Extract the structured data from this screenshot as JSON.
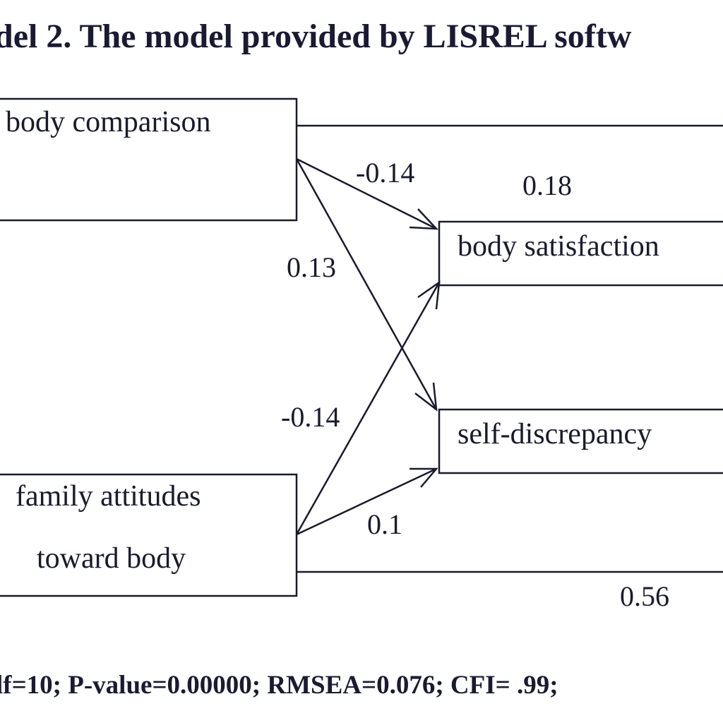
{
  "title": "del 2. The model provided by LISREL softw",
  "fit_line": "lf=10; P-value=0.00000; RMSEA=0.076; CFI= .99;",
  "nodes": {
    "body_comparison": "body comparison",
    "family_attitudes_line1": "family attitudes",
    "family_attitudes_line2": "toward body",
    "body_satisfaction": "body satisfaction",
    "self_discrepancy": "self-discrepancy"
  },
  "coefficients": {
    "bc_to_bs": "-0.14",
    "bc_to_sd": "0.13",
    "fa_to_bs": "-0.14",
    "fa_to_sd": "0.1",
    "bc_to_right": "0.18",
    "fa_to_right": "0.56"
  }
}
